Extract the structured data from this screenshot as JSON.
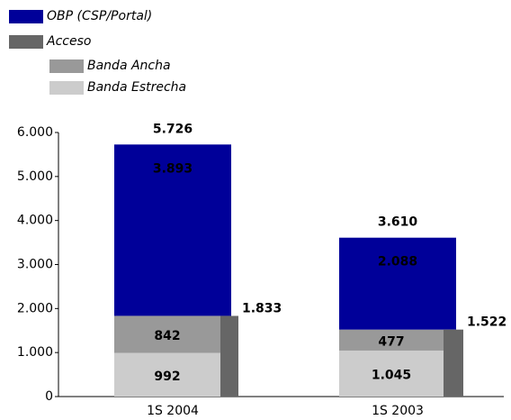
{
  "chart_data": {
    "type": "bar",
    "categories": [
      "1S 2004",
      "1S 2003"
    ],
    "series": [
      {
        "name": "Banda Estrecha",
        "color": "#cccccc",
        "values": [
          992,
          1045
        ],
        "value_labels": [
          "992",
          "1.045"
        ],
        "label_color": "#000000"
      },
      {
        "name": "Banda Ancha",
        "color": "#999999",
        "values": [
          842,
          477
        ],
        "label_color": "#ffffff"
      },
      {
        "name": "OBP (CSP/Portal)",
        "color": "#000099",
        "values": [
          3893,
          2088
        ],
        "value_labels": [
          "3.893",
          "2.088"
        ],
        "label_color": "#ffffff"
      }
    ],
    "side_series": {
      "name": "Acceso",
      "color": "#666666",
      "values": [
        1833,
        1522
      ],
      "value_labels": [
        "1.833",
        "1.522"
      ]
    },
    "totals": {
      "values": [
        5726,
        3610
      ],
      "value_labels": [
        "5.726",
        "3.610"
      ]
    },
    "ylim": [
      0,
      6000
    ],
    "yticks": [
      0,
      {
        "value": 1000,
        "label": "1.000"
      },
      {
        "value": 2000,
        "label": "2.000"
      },
      {
        "value": 3000,
        "label": "3.000"
      },
      {
        "value": 4000,
        "label": "4.000"
      },
      {
        "value": 5000,
        "label": "5.000"
      },
      {
        "value": 6000,
        "label": "6.000"
      }
    ]
  }
}
